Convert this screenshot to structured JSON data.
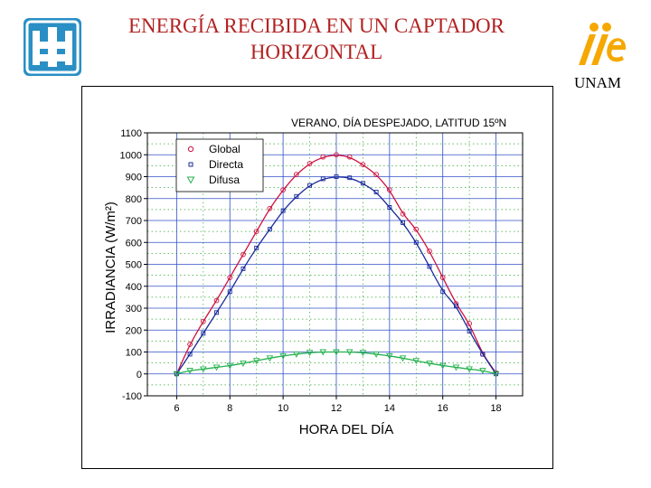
{
  "slide": {
    "title_line1": "ENERGÍA RECIBIDA EN UN CAPTADOR",
    "title_line2": "HORIZONTAL",
    "right_logo_text": "UNAM",
    "title_color": "#b22222"
  },
  "chart_data": {
    "type": "scatter",
    "title": "VERANO, DÍA DESPEJADO, LATITUD 15ºN",
    "xlabel": "HORA DEL DÍA",
    "ylabel": "IRRADIANCIA (W/m²)",
    "xlim": [
      4.9,
      19.0
    ],
    "ylim": [
      -100,
      1100
    ],
    "xticks": [
      6,
      8,
      10,
      12,
      14,
      16,
      18
    ],
    "yticks": [
      -100,
      0,
      100,
      200,
      300,
      400,
      500,
      600,
      700,
      800,
      900,
      1000,
      1100
    ],
    "grid": true,
    "legend_position": "top-left",
    "series": [
      {
        "name": "Global",
        "marker": "circle",
        "color": "#d01040",
        "x": [
          6.0,
          6.5,
          7.0,
          7.5,
          8.0,
          8.5,
          9.0,
          9.5,
          10.0,
          10.5,
          11.0,
          11.5,
          12.0,
          12.5,
          13.0,
          13.5,
          14.0,
          14.5,
          15.0,
          15.5,
          16.0,
          16.5,
          17.0,
          17.5,
          18.0
        ],
        "y": [
          0,
          135,
          240,
          335,
          440,
          545,
          650,
          755,
          840,
          910,
          960,
          990,
          1000,
          990,
          955,
          910,
          840,
          730,
          660,
          560,
          440,
          320,
          230,
          90,
          5
        ]
      },
      {
        "name": "Directa",
        "marker": "square",
        "color": "#1a2a9a",
        "x": [
          6.0,
          6.5,
          7.0,
          7.5,
          8.0,
          8.5,
          9.0,
          9.5,
          10.0,
          10.5,
          11.0,
          11.5,
          12.0,
          12.5,
          13.0,
          13.5,
          14.0,
          14.5,
          15.0,
          15.5,
          16.0,
          16.5,
          17.0,
          17.5,
          18.0
        ],
        "y": [
          0,
          90,
          185,
          280,
          375,
          480,
          575,
          660,
          745,
          810,
          860,
          890,
          900,
          895,
          870,
          830,
          760,
          690,
          600,
          490,
          375,
          310,
          195,
          90,
          0
        ]
      },
      {
        "name": "Difusa",
        "marker": "triangle-down",
        "color": "#22b14c",
        "x": [
          6.0,
          6.5,
          7.0,
          7.5,
          8.0,
          8.5,
          9.0,
          9.5,
          10.0,
          10.5,
          11.0,
          11.5,
          12.0,
          12.5,
          13.0,
          13.5,
          14.0,
          14.5,
          15.0,
          15.5,
          16.0,
          16.5,
          17.0,
          17.5,
          18.0
        ],
        "y": [
          0,
          15,
          22,
          30,
          38,
          48,
          60,
          72,
          82,
          90,
          97,
          100,
          100,
          100,
          97,
          90,
          82,
          72,
          60,
          48,
          38,
          30,
          22,
          15,
          0
        ]
      }
    ]
  }
}
